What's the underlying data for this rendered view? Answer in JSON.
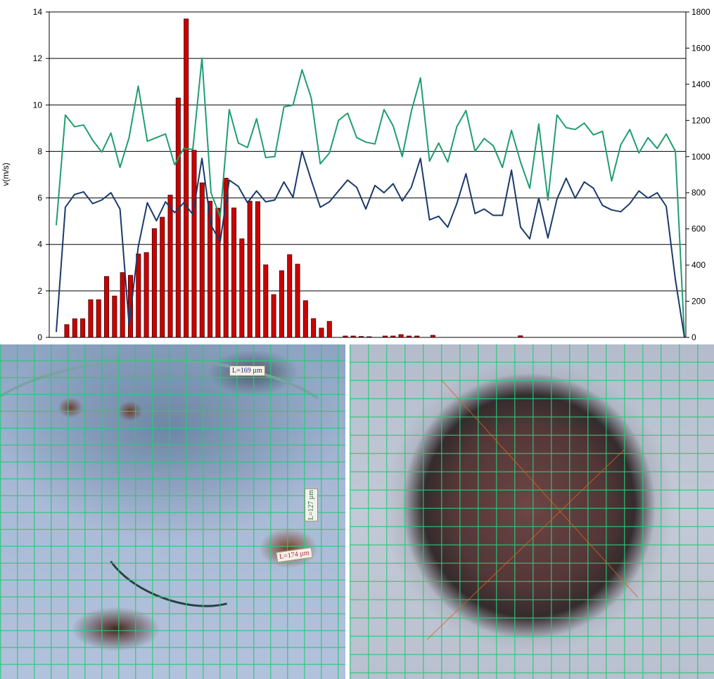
{
  "chart_data": {
    "type": "bar+line",
    "ylabel": "v(m/s)",
    "ylim_left": [
      0,
      14
    ],
    "ylim_right": [
      0,
      1800
    ],
    "yticks_left": [
      "0",
      "2",
      "4",
      "6",
      "8",
      "10",
      "12",
      "14"
    ],
    "yticks_right": [
      "0",
      "200",
      "400",
      "600",
      "800",
      "1000",
      "1200",
      "1400",
      "1600",
      "1800"
    ],
    "grid": true,
    "colors": {
      "bars": "#cc0000",
      "bar_edge": "#400000",
      "line_dark": "#1a3a6b",
      "line_green": "#1f9e6e"
    },
    "bars": [
      0,
      0.55,
      0.8,
      0.8,
      1.62,
      1.62,
      2.62,
      1.78,
      2.79,
      2.67,
      3.59,
      3.65,
      4.68,
      5.17,
      6.12,
      10.3,
      13.7,
      8.05,
      6.65,
      5.86,
      5.56,
      6.85,
      5.57,
      4.24,
      5.86,
      5.84,
      3.12,
      1.84,
      2.87,
      3.56,
      3.15,
      1.58,
      0.81,
      0.4,
      0.69,
      0,
      0.06,
      0.06,
      0.04,
      0.03,
      0,
      0.06,
      0.06,
      0.12,
      0.06,
      0.06,
      0,
      0.09,
      0,
      0,
      0,
      0,
      0,
      0,
      0,
      0,
      0,
      0,
      0.07,
      0,
      0,
      0,
      0,
      0,
      0,
      0,
      0,
      0,
      0,
      0,
      0,
      0,
      0,
      0,
      0,
      0,
      0,
      0,
      0,
      0
    ],
    "series_right_dark": [
      30,
      720,
      790,
      805,
      740,
      760,
      800,
      710,
      70,
      500,
      745,
      645,
      750,
      690,
      745,
      680,
      990,
      620,
      530,
      870,
      835,
      745,
      810,
      750,
      760,
      860,
      775,
      1030,
      870,
      720,
      750,
      810,
      870,
      830,
      710,
      840,
      800,
      850,
      755,
      830,
      990,
      650,
      670,
      610,
      740,
      905,
      685,
      710,
      675,
      675,
      925,
      610,
      545,
      770,
      550,
      765,
      880,
      770,
      860,
      825,
      730,
      705,
      695,
      740,
      810,
      770,
      800,
      725,
      320,
      0
    ],
    "series_right_green": [
      620,
      1230,
      1165,
      1175,
      1090,
      1025,
      1130,
      940,
      1105,
      1390,
      1085,
      1105,
      1125,
      955,
      1045,
      1040,
      1545,
      800,
      665,
      1260,
      1075,
      1050,
      1210,
      995,
      1000,
      1275,
      1285,
      1480,
      1325,
      960,
      1020,
      1200,
      1240,
      1105,
      1080,
      1070,
      1260,
      1170,
      1000,
      1250,
      1435,
      975,
      1075,
      970,
      1165,
      1255,
      1030,
      1100,
      1060,
      940,
      1145,
      970,
      825,
      1180,
      760,
      1230,
      1160,
      1150,
      1185,
      1120,
      1140,
      865,
      1065,
      1150,
      1020,
      1105,
      1045,
      1125,
      1030,
      0
    ]
  },
  "photos": {
    "left_labels": [
      "L=169 µm",
      "L=127 µm",
      "L=174 µm"
    ]
  }
}
